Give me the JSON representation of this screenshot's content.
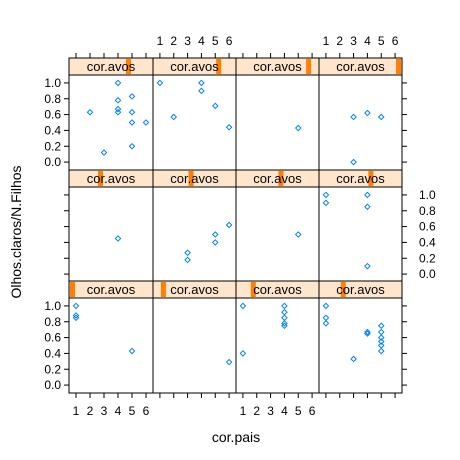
{
  "chart_data": {
    "type": "scatter",
    "xlabel": "cor.pais",
    "ylabel": "Olhos.claros/N.Filhos",
    "strip_label": "cor.avos",
    "xlim": [
      0.5,
      6.5
    ],
    "ylim": [
      -0.1,
      1.1
    ],
    "x_ticks": [
      1,
      2,
      3,
      4,
      5,
      6
    ],
    "y_ticks": [
      0.0,
      0.2,
      0.4,
      0.6,
      0.8,
      1.0
    ],
    "y_tick_labels": [
      "0.0",
      "0.2",
      "0.4",
      "0.6",
      "0.8",
      "1.0"
    ],
    "layout": [
      4,
      3
    ],
    "colors": {
      "points": "#0080ff",
      "strip_bg": "#ffe5cc",
      "strip_indicator": "#ff7f00"
    },
    "panels": [
      {
        "level": 8,
        "points": [
          [
            2,
            0.63
          ],
          [
            3,
            0.12
          ],
          [
            4,
            1.0
          ],
          [
            4,
            0.78
          ],
          [
            4,
            0.67
          ],
          [
            4,
            0.63
          ],
          [
            5,
            0.83
          ],
          [
            5,
            0.63
          ],
          [
            5,
            0.5
          ],
          [
            5,
            0.2
          ],
          [
            6,
            0.5
          ]
        ]
      },
      {
        "level": 9,
        "points": [
          [
            1,
            1.0
          ],
          [
            2,
            0.57
          ],
          [
            4,
            1.0
          ],
          [
            4,
            0.9
          ],
          [
            5,
            0.71
          ],
          [
            6,
            0.44
          ]
        ]
      },
      {
        "level": 10,
        "points": [
          [
            5,
            0.43
          ]
        ]
      },
      {
        "level": 11,
        "points": [
          [
            3,
            0.57
          ],
          [
            3,
            0.0
          ],
          [
            4,
            0.62
          ],
          [
            5,
            0.57
          ]
        ]
      },
      {
        "level": 4,
        "points": [
          [
            4,
            0.45
          ]
        ]
      },
      {
        "level": 5,
        "points": [
          [
            3,
            0.27
          ],
          [
            3,
            0.18
          ],
          [
            5,
            0.5
          ],
          [
            5,
            0.4
          ],
          [
            6,
            0.62
          ]
        ]
      },
      {
        "level": 6,
        "points": [
          [
            5,
            0.5
          ]
        ]
      },
      {
        "level": 7,
        "points": [
          [
            1,
            1.0
          ],
          [
            1,
            0.9
          ],
          [
            4,
            1.0
          ],
          [
            4,
            0.85
          ],
          [
            4,
            0.1
          ]
        ]
      },
      {
        "level": 0,
        "points": [
          [
            1,
            1.0
          ],
          [
            1,
            0.88
          ],
          [
            1,
            0.85
          ],
          [
            5,
            0.43
          ]
        ]
      },
      {
        "level": 1,
        "points": [
          [
            6,
            0.29
          ]
        ]
      },
      {
        "level": 2,
        "points": [
          [
            1,
            1.0
          ],
          [
            1,
            0.4
          ],
          [
            4,
            1.0
          ],
          [
            4,
            0.92
          ],
          [
            4,
            0.85
          ],
          [
            4,
            0.78
          ],
          [
            4,
            0.75
          ]
        ]
      },
      {
        "level": 3,
        "points": [
          [
            1,
            1.0
          ],
          [
            1,
            0.85
          ],
          [
            1,
            0.78
          ],
          [
            3,
            0.33
          ],
          [
            4,
            0.67
          ],
          [
            4,
            0.65
          ],
          [
            5,
            0.75
          ],
          [
            5,
            0.67
          ],
          [
            5,
            0.6
          ],
          [
            5,
            0.55
          ],
          [
            5,
            0.5
          ],
          [
            5,
            0.43
          ]
        ]
      }
    ],
    "n_levels": 12
  }
}
